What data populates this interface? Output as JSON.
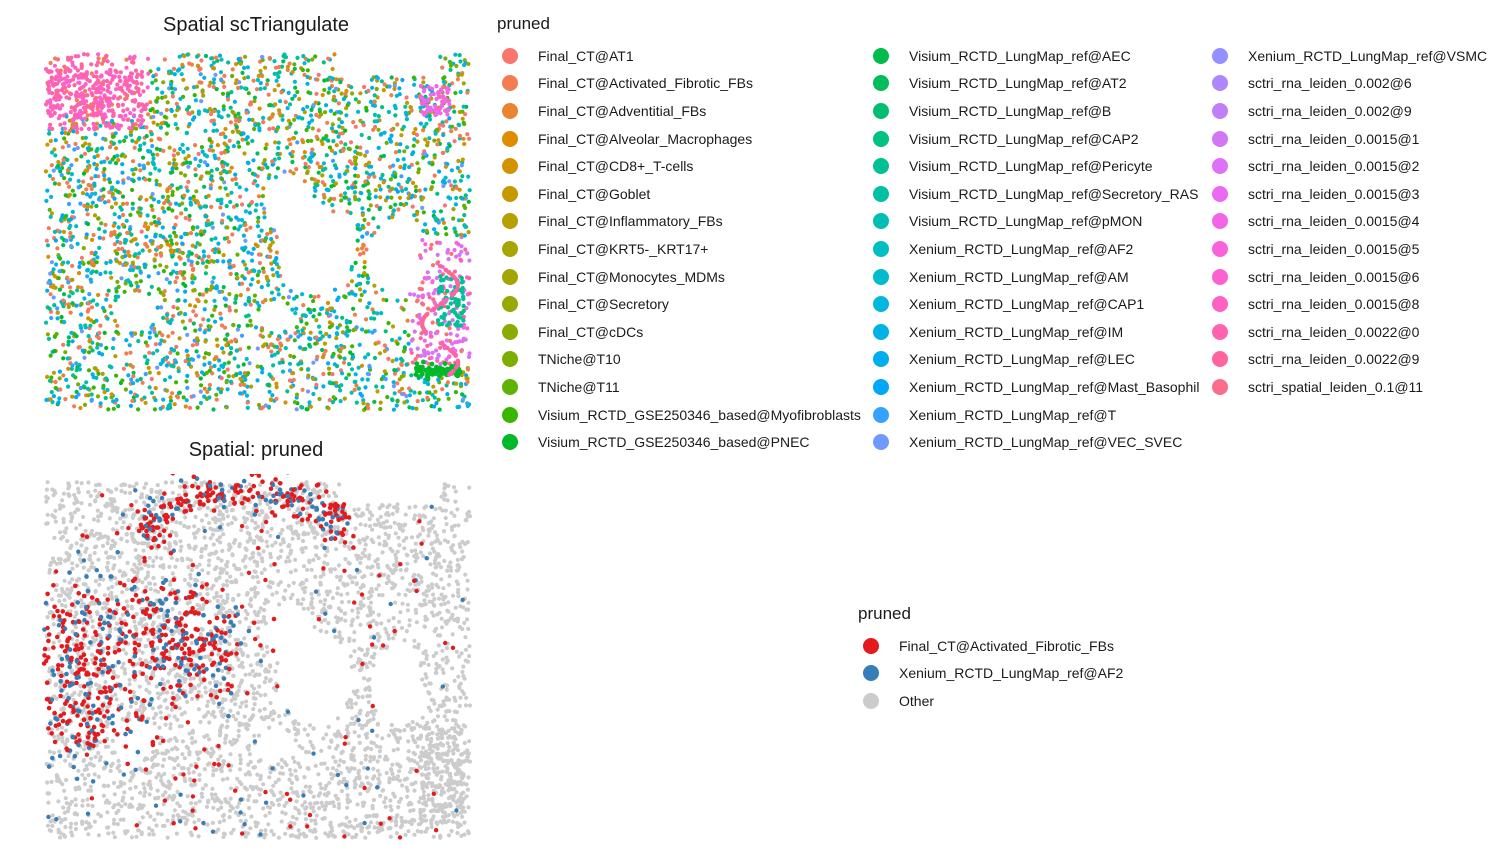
{
  "chart_data": [
    {
      "type": "scatter",
      "title": "Spatial scTriangulate",
      "legend_title": "pruned",
      "legend_position": "right",
      "grid": false,
      "series": [
        {
          "name": "Final_CT@AT1",
          "color": "#F8766D"
        },
        {
          "name": "Final_CT@Activated_Fibrotic_FBs",
          "color": "#F27D52"
        },
        {
          "name": "Final_CT@Adventitial_FBs",
          "color": "#E98432"
        },
        {
          "name": "Final_CT@Alveolar_Macrophages",
          "color": "#DE8C00"
        },
        {
          "name": "Final_CT@CD8+_T-cells",
          "color": "#D39200"
        },
        {
          "name": "Final_CT@Goblet",
          "color": "#C69900"
        },
        {
          "name": "Final_CT@Inflammatory_FBs",
          "color": "#B79F00"
        },
        {
          "name": "Final_CT@KRT5-_KRT17+",
          "color": "#A7A500"
        },
        {
          "name": "Final_CT@Monocytes_MDMs",
          "color": "#A3A500"
        },
        {
          "name": "Final_CT@Secretory",
          "color": "#97A800"
        },
        {
          "name": "Final_CT@cDCs",
          "color": "#8AAB00"
        },
        {
          "name": "TNiche@T10",
          "color": "#7CAE00"
        },
        {
          "name": "TNiche@T11",
          "color": "#5EB300"
        },
        {
          "name": "Visium_RCTD_GSE250346_based@Myofibroblasts",
          "color": "#39B600"
        },
        {
          "name": "Visium_RCTD_GSE250346_based@PNEC",
          "color": "#00B929"
        },
        {
          "name": "Visium_RCTD_LungMap_ref@AEC",
          "color": "#00BB4E"
        },
        {
          "name": "Visium_RCTD_LungMap_ref@AT2",
          "color": "#00BD5C"
        },
        {
          "name": "Visium_RCTD_LungMap_ref@B",
          "color": "#00BE70"
        },
        {
          "name": "Visium_RCTD_LungMap_ref@CAP2",
          "color": "#00C082"
        },
        {
          "name": "Visium_RCTD_LungMap_ref@Pericyte",
          "color": "#00C094"
        },
        {
          "name": "Visium_RCTD_LungMap_ref@Secretory_RAS",
          "color": "#00C0A3"
        },
        {
          "name": "Visium_RCTD_LungMap_ref@pMON",
          "color": "#00BFB2"
        },
        {
          "name": "Xenium_RCTD_LungMap_ref@AF2",
          "color": "#00BDC0"
        },
        {
          "name": "Xenium_RCTD_LungMap_ref@AM",
          "color": "#00BBCD"
        },
        {
          "name": "Xenium_RCTD_LungMap_ref@CAP1",
          "color": "#00B8D9"
        },
        {
          "name": "Xenium_RCTD_LungMap_ref@IM",
          "color": "#00B3E4"
        },
        {
          "name": "Xenium_RCTD_LungMap_ref@LEC",
          "color": "#00AEEE"
        },
        {
          "name": "Xenium_RCTD_LungMap_ref@Mast_Basophil",
          "color": "#00A7F6"
        },
        {
          "name": "Xenium_RCTD_LungMap_ref@T",
          "color": "#35A2FF"
        },
        {
          "name": "Xenium_RCTD_LungMap_ref@VEC_SVEC",
          "color": "#7099FF"
        },
        {
          "name": "Xenium_RCTD_LungMap_ref@VSMC",
          "color": "#9590FF"
        },
        {
          "name": "sctri_rna_leiden_0.002@6",
          "color": "#AE87FF"
        },
        {
          "name": "sctri_rna_leiden_0.002@9",
          "color": "#C17FF7"
        },
        {
          "name": "sctri_rna_leiden_0.0015@1",
          "color": "#D277F4"
        },
        {
          "name": "sctri_rna_leiden_0.0015@2",
          "color": "#DF70F8"
        },
        {
          "name": "sctri_rna_leiden_0.0015@3",
          "color": "#EA6AF1"
        },
        {
          "name": "sctri_rna_leiden_0.0015@4",
          "color": "#F265E7"
        },
        {
          "name": "sctri_rna_leiden_0.0015@5",
          "color": "#F863DC"
        },
        {
          "name": "sctri_rna_leiden_0.0015@6",
          "color": "#FC61D0"
        },
        {
          "name": "sctri_rna_leiden_0.0015@8",
          "color": "#FE61C1"
        },
        {
          "name": "sctri_rna_leiden_0.0022@0",
          "color": "#FF62B1"
        },
        {
          "name": "sctri_rna_leiden_0.0022@9",
          "color": "#FF64A0"
        },
        {
          "name": "sctri_spatial_leiden_0.1@11",
          "color": "#FB6C8D"
        }
      ]
    },
    {
      "type": "scatter",
      "title": "Spatial: pruned",
      "legend_title": "pruned",
      "legend_position": "right",
      "grid": false,
      "series": [
        {
          "name": "Final_CT@Activated_Fibrotic_FBs",
          "color": "#E41A1C"
        },
        {
          "name": "Xenium_RCTD_LungMap_ref@AF2",
          "color": "#377EB8"
        },
        {
          "name": "Other",
          "color": "#CCCCCC"
        }
      ]
    }
  ]
}
